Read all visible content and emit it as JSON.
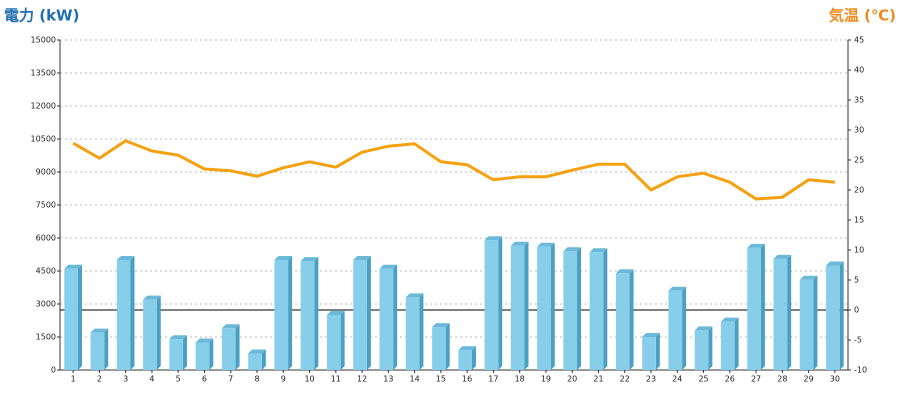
{
  "chart_data": {
    "type": "bar",
    "y_axis_title": "電力 (kW)",
    "y2_axis_title": "気温 (℃)",
    "categories": [
      "1",
      "2",
      "3",
      "4",
      "5",
      "6",
      "7",
      "8",
      "9",
      "10",
      "11",
      "12",
      "13",
      "14",
      "15",
      "16",
      "17",
      "18",
      "19",
      "20",
      "21",
      "22",
      "23",
      "24",
      "25",
      "26",
      "27",
      "28",
      "29",
      "30"
    ],
    "series": [
      {
        "name": "電力",
        "type": "bar",
        "color": "#87ceeb",
        "values": [
          4600,
          1700,
          5000,
          3200,
          1400,
          1250,
          1900,
          750,
          5000,
          4950,
          2500,
          5000,
          4600,
          3300,
          1950,
          900,
          5900,
          5650,
          5600,
          5400,
          5350,
          4400,
          1500,
          3600,
          1800,
          2200,
          5550,
          5050,
          4100,
          4750
        ]
      },
      {
        "name": "気温",
        "type": "line",
        "axis": "y2",
        "color": "#f5a00f",
        "values": [
          27.8,
          25.3,
          28.2,
          26.5,
          25.8,
          23.5,
          23.2,
          22.3,
          23.7,
          24.7,
          23.8,
          26.3,
          27.3,
          27.7,
          24.7,
          24.2,
          21.7,
          22.2,
          22.2,
          23.3,
          24.3,
          24.3,
          20,
          22.2,
          22.8,
          21.3,
          18.5,
          18.8,
          21.7,
          21.3
        ]
      }
    ],
    "ylim": [
      0,
      15000
    ],
    "yticks": [
      0,
      1500,
      3000,
      4500,
      6000,
      7500,
      9000,
      10500,
      12000,
      13500,
      15000
    ],
    "y2lim": [
      -10,
      45
    ],
    "y2ticks": [
      -10,
      -5,
      0,
      5,
      10,
      15,
      20,
      25,
      30,
      35,
      40,
      45
    ],
    "grid": true
  }
}
